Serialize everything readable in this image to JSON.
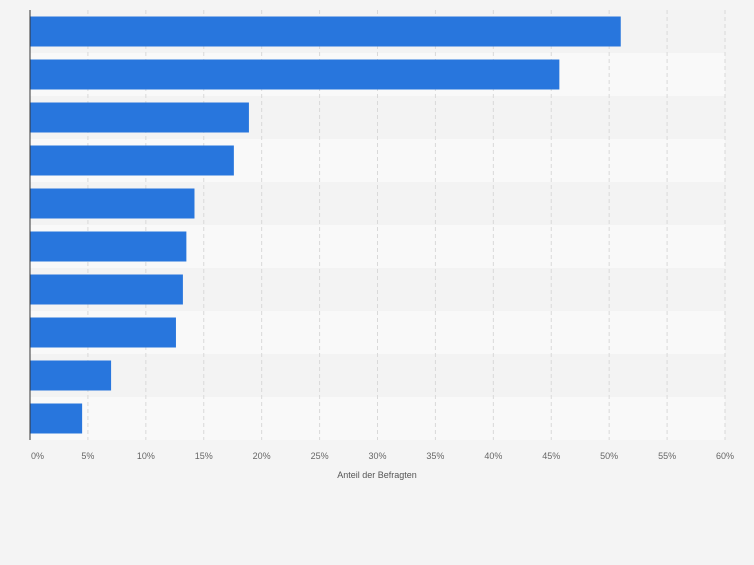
{
  "chart_data": {
    "type": "bar",
    "orientation": "horizontal",
    "categories": [
      "",
      "",
      "",
      "",
      "",
      "",
      "",
      "",
      "",
      ""
    ],
    "values": [
      51,
      45.7,
      18.9,
      17.6,
      14.2,
      13.5,
      13.2,
      12.6,
      7,
      4.5
    ],
    "title": "",
    "xlabel": "Anteil der Befragten",
    "ylabel": "",
    "xlim": [
      0,
      60
    ],
    "x_ticks": [
      0,
      5,
      10,
      15,
      20,
      25,
      30,
      35,
      40,
      45,
      50,
      55,
      60
    ],
    "x_tick_labels": [
      "0%",
      "5%",
      "10%",
      "15%",
      "20%",
      "25%",
      "30%",
      "35%",
      "40%",
      "45%",
      "50%",
      "55%",
      "60%"
    ],
    "grid": true,
    "legend": "none",
    "colors": {
      "bar": "#2876dd",
      "background": "#f4f4f4",
      "band_light": "#f9f9f9",
      "band_dark": "#f3f3f3",
      "grid": "#d9d9d9",
      "axis": "#333333",
      "tick_text": "#666666"
    }
  }
}
